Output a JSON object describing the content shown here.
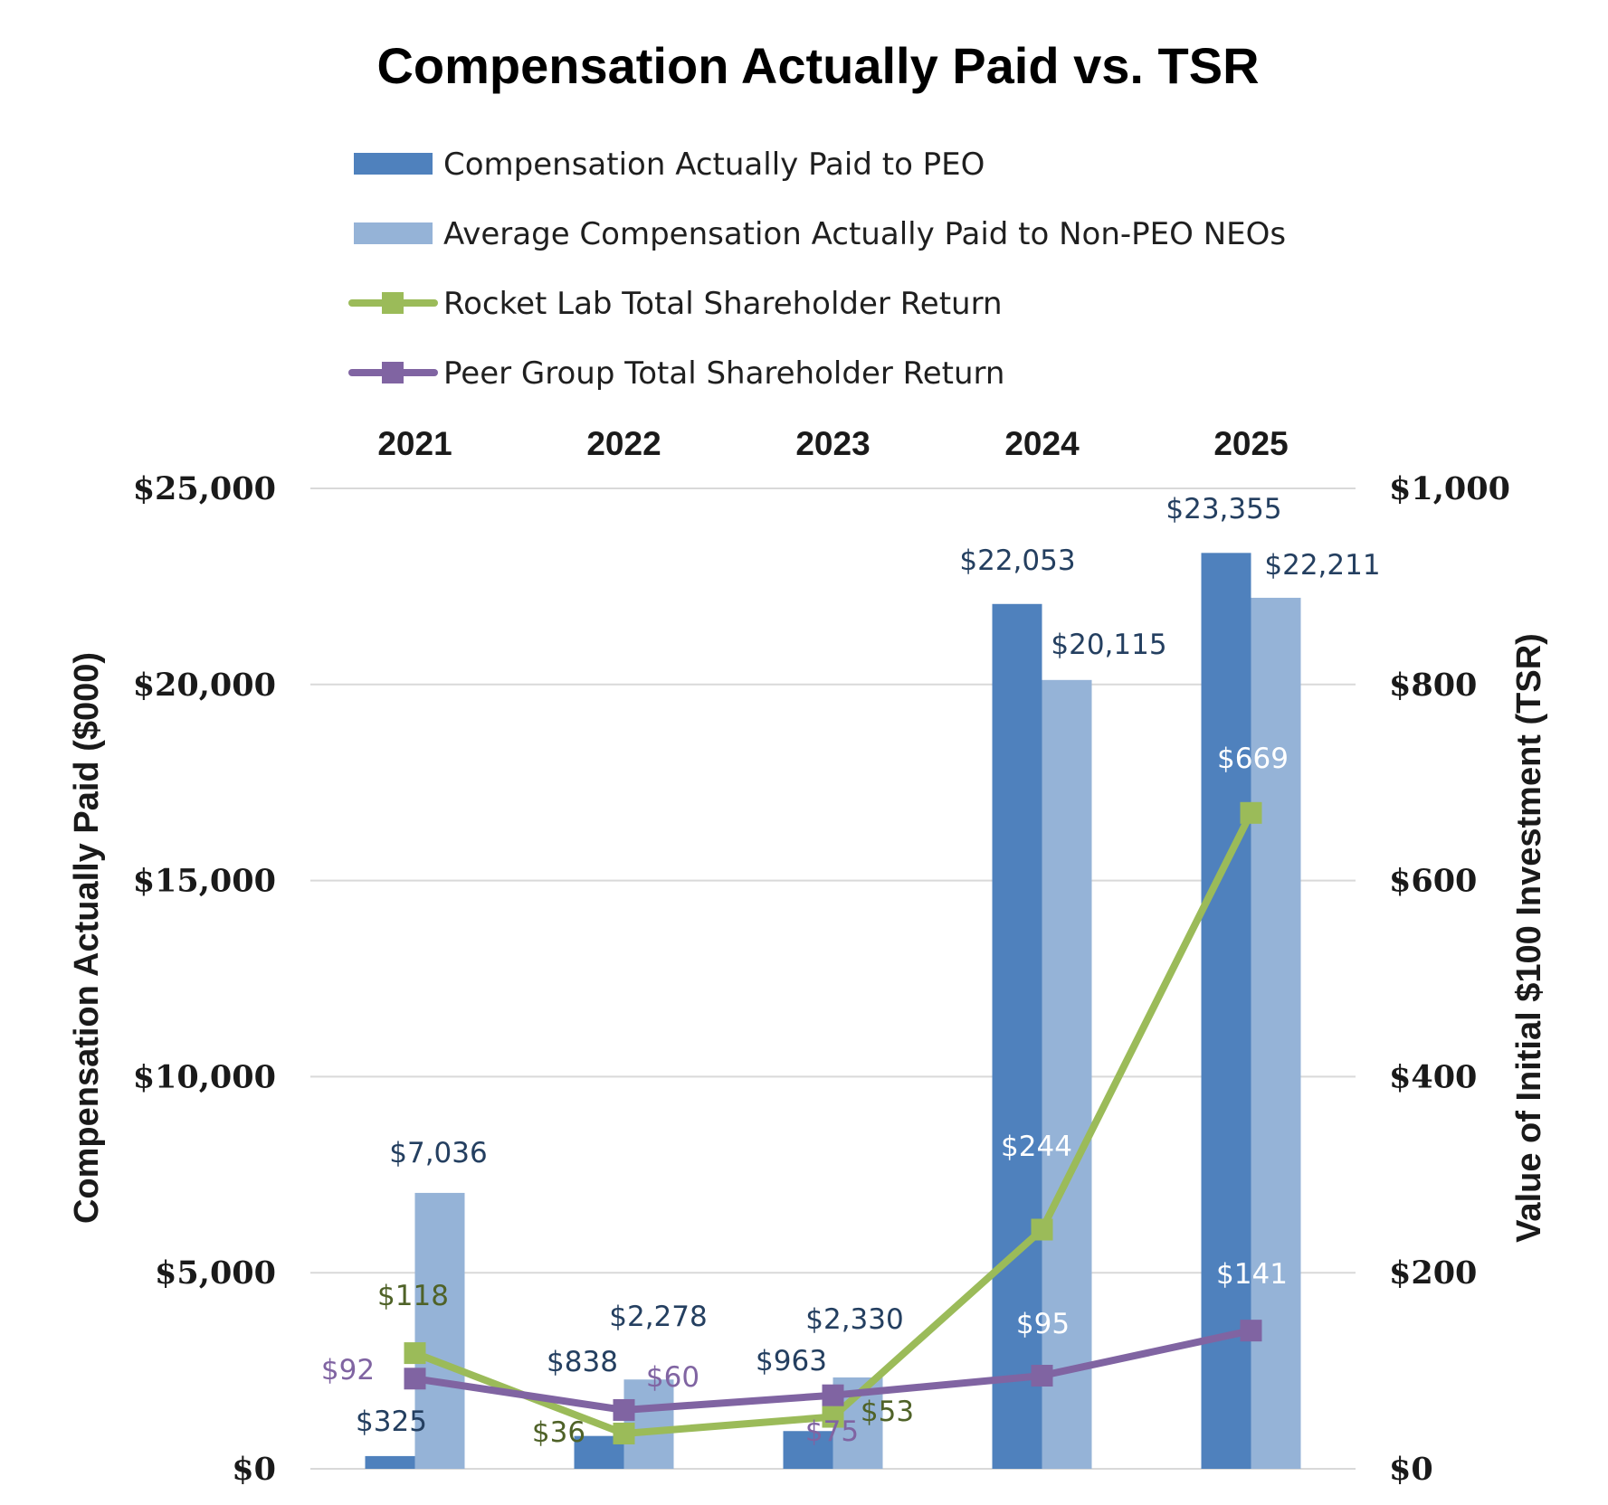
{
  "chart_data": {
    "type": "bar",
    "title": "Compensation Actually Paid vs. TSR",
    "categories": [
      "2021",
      "2022",
      "2023",
      "2024",
      "2025"
    ],
    "series": [
      {
        "name": "Compensation Actually Paid to PEO",
        "kind": "bar",
        "axis": "left",
        "color": "#4f81bd",
        "values": [
          325,
          838,
          963,
          22053,
          23355
        ],
        "labels": [
          "$325",
          "$838",
          "$963",
          "$22,053",
          "$23,355"
        ]
      },
      {
        "name": "Average Compensation Actually Paid to Non-PEO NEOs",
        "kind": "bar",
        "axis": "left",
        "color": "#95b3d7",
        "values": [
          7036,
          2278,
          2330,
          20115,
          22211
        ],
        "labels": [
          "$7,036",
          "$2,278",
          "$2,330",
          "$20,115",
          "$22,211"
        ]
      },
      {
        "name": "Rocket Lab Total Shareholder Return",
        "kind": "line",
        "axis": "right",
        "color": "#9bbb59",
        "values": [
          118,
          36,
          53,
          244,
          669
        ],
        "labels": [
          "$118",
          "$36",
          "$53",
          "$244",
          "$669"
        ]
      },
      {
        "name": "Peer Group Total Shareholder Return",
        "kind": "line",
        "axis": "right",
        "color": "#8064a2",
        "values": [
          92,
          60,
          75,
          95,
          141
        ],
        "labels": [
          "$92",
          "$60",
          "$75",
          "$95",
          "$141"
        ]
      }
    ],
    "ylabel": "Compensation Actually Paid ($000)",
    "y2label": "Value of Initial $100 Investment (TSR)",
    "ylim": [
      0,
      25000
    ],
    "y2lim": [
      0,
      1000
    ],
    "yticks": [
      "$0",
      "$5,000",
      "$10,000",
      "$15,000",
      "$20,000",
      "$25,000"
    ],
    "y2ticks": [
      "$0",
      "$200",
      "$400",
      "$600",
      "$800",
      "$1,000"
    ],
    "x_axis_position": "top",
    "grid": true,
    "legend_position": "top"
  },
  "colors": {
    "peo_label": "#243f60",
    "rocket_label": "#4f6228",
    "peer_label": "#8064a2",
    "light_label": "#ffffff"
  }
}
